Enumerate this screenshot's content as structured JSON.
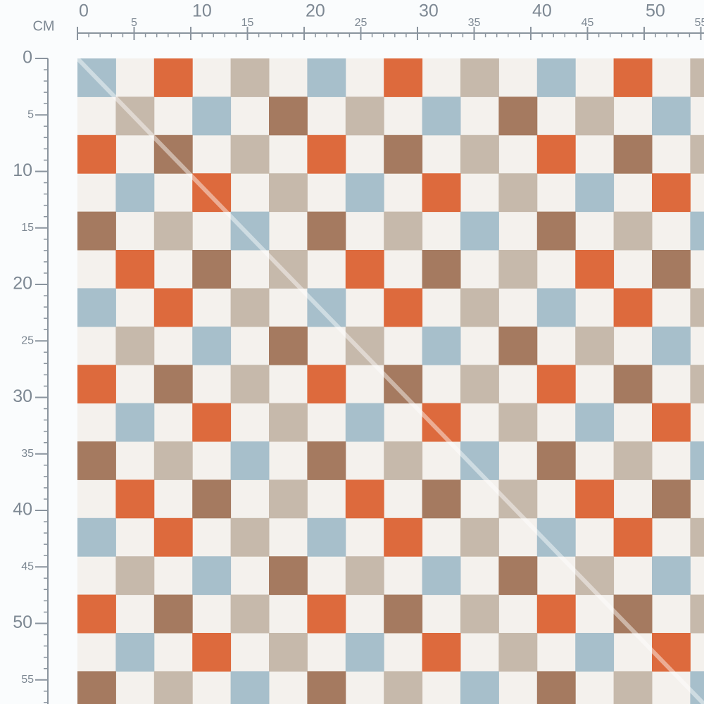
{
  "ruler": {
    "unit": "CM",
    "top_ticks": [
      0,
      5,
      10,
      15,
      20,
      25,
      30,
      35,
      40,
      45,
      50,
      55
    ],
    "left_ticks": [
      0,
      5,
      10,
      15,
      20,
      25,
      30,
      35,
      40,
      45,
      50,
      55
    ]
  }
}
